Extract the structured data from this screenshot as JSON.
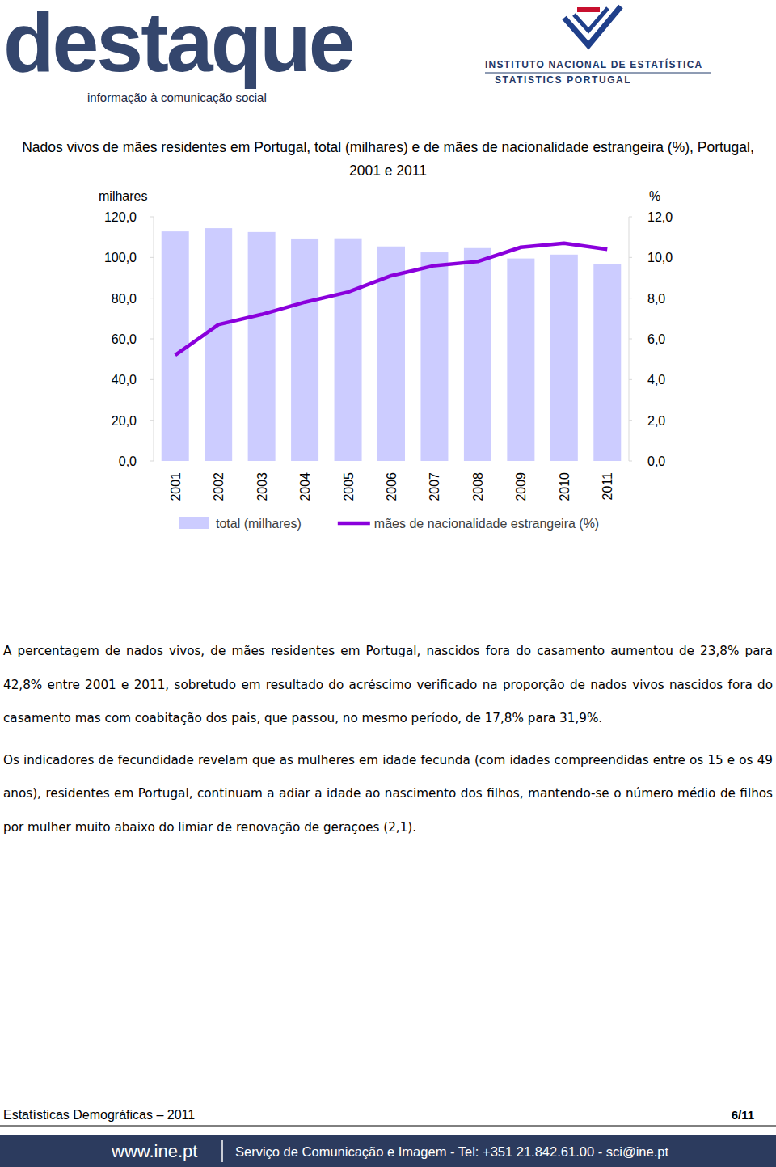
{
  "header": {
    "logo": "destaque",
    "tagline": "informação à comunicação social",
    "institute": "INSTITUTO NACIONAL DE ESTATÍSTICA",
    "institute_en": "STATISTICS PORTUGAL"
  },
  "chart_data": {
    "type": "bar",
    "title": "Nados vivos de mães residentes em Portugal, total (milhares) e de mães de nacionalidade estrangeira (%), Portugal, 2001 e 2011",
    "y_label": "milhares",
    "y2_label": "%",
    "categories": [
      "2001",
      "2002",
      "2003",
      "2004",
      "2005",
      "2006",
      "2007",
      "2008",
      "2009",
      "2010",
      "2011"
    ],
    "series": [
      {
        "name": "total (milhares)",
        "type": "bar",
        "color": "#ccccff",
        "values": [
          112.8,
          114.4,
          112.5,
          109.3,
          109.4,
          105.4,
          102.5,
          104.6,
          99.5,
          101.4,
          96.9
        ]
      },
      {
        "name": "mães de nacionalidade estrangeira (%)",
        "type": "line",
        "color": "#8a00dc",
        "axis": "y2",
        "values": [
          5.2,
          6.7,
          7.2,
          7.8,
          8.3,
          9.1,
          9.6,
          9.8,
          10.5,
          10.7,
          10.4
        ]
      }
    ],
    "ylim": [
      0,
      120
    ],
    "yticks": [
      {
        "value": 0,
        "label": "0,0"
      },
      {
        "value": 20,
        "label": "20,0"
      },
      {
        "value": 40,
        "label": "40,0"
      },
      {
        "value": 60,
        "label": "60,0"
      },
      {
        "value": 80,
        "label": "80,0"
      },
      {
        "value": 100,
        "label": "100,0"
      },
      {
        "value": 120,
        "label": "120,0"
      }
    ],
    "y2lim": [
      0,
      12
    ],
    "y2ticks": [
      {
        "value": 0,
        "label": "0,0"
      },
      {
        "value": 2,
        "label": "2,0"
      },
      {
        "value": 4,
        "label": "4,0"
      },
      {
        "value": 6,
        "label": "6,0"
      },
      {
        "value": 8,
        "label": "8,0"
      },
      {
        "value": 10,
        "label": "10,0"
      },
      {
        "value": 12,
        "label": "12,0"
      }
    ],
    "grid": false,
    "legend": "bottom"
  },
  "paragraphs": [
    "A percentagem de nados vivos, de mães residentes em Portugal, nascidos fora do casamento aumentou de 23,8% para 42,8% entre 2001 e 2011, sobretudo em resultado do acréscimo verificado na proporção de nados vivos nascidos fora do casamento mas com coabitação dos pais, que passou, no mesmo período, de 17,8% para 31,9%.",
    "Os indicadores de fecundidade revelam que as mulheres em idade fecunda (com idades compreendidas entre os 15 e os 49 anos), residentes em Portugal, continuam a adiar a idade ao nascimento dos filhos, mantendo-se o número médio de filhos por mulher muito abaixo do limiar de renovação de gerações (2,1)."
  ],
  "footer": {
    "title": "Estatísticas Demográficas – 2011",
    "page": "6/11",
    "website": "www.ine.pt",
    "contact": "Serviço de Comunicação e Imagem - Tel: +351 21.842.61.00 - sci@ine.pt"
  }
}
